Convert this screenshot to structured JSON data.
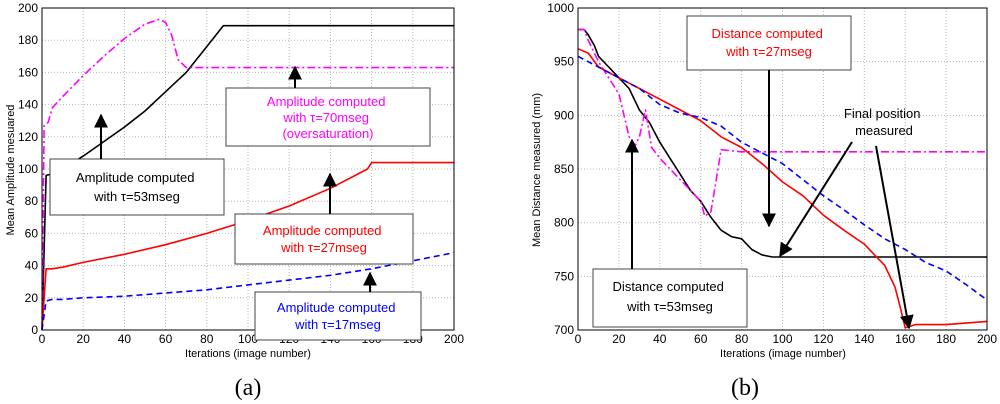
{
  "chart_data": [
    {
      "type": "line",
      "panel_caption": "(a)",
      "xlabel": "Iterations (image number)",
      "ylabel": "Mean Amplitude mesuared",
      "xlim": [
        0,
        200
      ],
      "ylim": [
        0,
        200
      ],
      "xticks": [
        0,
        20,
        40,
        60,
        80,
        100,
        120,
        140,
        160,
        180,
        200
      ],
      "yticks": [
        0,
        20,
        40,
        60,
        80,
        100,
        120,
        140,
        160,
        180,
        200
      ],
      "grid": true,
      "series": [
        {
          "name": "τ=53mseg",
          "color": "#000000",
          "style": "solid",
          "x": [
            0,
            2,
            5,
            10,
            20,
            30,
            40,
            50,
            60,
            70,
            80,
            88,
            100,
            120,
            140,
            160,
            180,
            200
          ],
          "y": [
            0,
            96,
            97,
            100,
            108,
            117,
            126,
            136,
            148,
            160,
            176,
            189,
            189,
            189,
            189,
            189,
            189,
            189
          ]
        },
        {
          "name": "τ=70mseg",
          "color": "#ff00ff",
          "style": "dashdot",
          "x": [
            0,
            1,
            3,
            5,
            10,
            20,
            30,
            40,
            50,
            57,
            60,
            63,
            66,
            70,
            80,
            100,
            120,
            140,
            160,
            180,
            200
          ],
          "y": [
            0,
            127,
            129,
            138,
            145,
            158,
            170,
            181,
            190,
            193,
            191,
            183,
            168,
            163,
            163,
            163,
            163,
            163,
            163,
            163,
            163
          ]
        },
        {
          "name": "τ=27mseg",
          "color": "#ff0000",
          "style": "solid",
          "x": [
            0,
            2,
            5,
            10,
            20,
            40,
            60,
            80,
            100,
            120,
            140,
            158,
            160,
            180,
            200
          ],
          "y": [
            0,
            38,
            38,
            39,
            42,
            47,
            53,
            60,
            68,
            77,
            88,
            100,
            104,
            104,
            104
          ]
        },
        {
          "name": "τ=17mseg",
          "color": "#0000ff",
          "style": "dashed",
          "x": [
            0,
            2,
            5,
            10,
            20,
            40,
            60,
            80,
            100,
            120,
            140,
            160,
            180,
            200
          ],
          "y": [
            0,
            18,
            19,
            19,
            20,
            21,
            23,
            25,
            28,
            31,
            34,
            38,
            43,
            48
          ]
        }
      ],
      "annotations": [
        {
          "lines": [
            "Amplitude computed",
            "with τ=53mseg"
          ],
          "color": "#000000"
        },
        {
          "lines": [
            "Amplitude computed",
            "with τ=70mseg",
            "(oversaturation)"
          ],
          "color": "#ff00ff"
        },
        {
          "lines": [
            "Amplitude computed",
            "with τ=27mseg"
          ],
          "color": "#ff0000"
        },
        {
          "lines": [
            "Amplitude computed",
            "with τ=17mseg"
          ],
          "color": "#0000ff"
        }
      ]
    },
    {
      "type": "line",
      "panel_caption": "(b)",
      "xlabel": "Iterations (image number)",
      "ylabel": "Mean Distance measured (mm)",
      "xlim": [
        0,
        200
      ],
      "ylim": [
        700,
        1000
      ],
      "xticks": [
        0,
        20,
        40,
        60,
        80,
        100,
        120,
        140,
        160,
        180,
        200
      ],
      "yticks": [
        700,
        750,
        800,
        850,
        900,
        950,
        1000
      ],
      "grid": true,
      "series": [
        {
          "name": "τ=53mseg",
          "color": "#000000",
          "style": "solid",
          "x": [
            0,
            3,
            5,
            8,
            10,
            15,
            20,
            25,
            30,
            35,
            40,
            45,
            50,
            55,
            60,
            65,
            70,
            75,
            80,
            85,
            90,
            95,
            100,
            120,
            140,
            160,
            180,
            200
          ],
          "y": [
            980,
            980,
            975,
            965,
            955,
            945,
            935,
            925,
            905,
            893,
            875,
            860,
            845,
            830,
            820,
            805,
            793,
            787,
            785,
            775,
            770,
            768,
            768,
            768,
            768,
            768,
            768,
            768
          ]
        },
        {
          "name": "τ=70mseg",
          "color": "#ff00ff",
          "style": "dashdot",
          "x": [
            0,
            3,
            5,
            10,
            15,
            20,
            25,
            28,
            30,
            33,
            36,
            40,
            50,
            60,
            62,
            65,
            68,
            70,
            80,
            100,
            120,
            140,
            160,
            180,
            200
          ],
          "y": [
            980,
            980,
            970,
            950,
            935,
            920,
            880,
            872,
            880,
            905,
            870,
            860,
            840,
            820,
            806,
            810,
            845,
            868,
            866,
            866,
            866,
            866,
            866,
            866,
            866
          ]
        },
        {
          "name": "τ=27mseg",
          "color": "#ff0000",
          "style": "solid",
          "x": [
            0,
            5,
            10,
            20,
            30,
            40,
            50,
            60,
            70,
            80,
            90,
            100,
            110,
            120,
            130,
            140,
            150,
            155,
            158,
            160,
            165,
            180,
            200
          ],
          "y": [
            962,
            958,
            945,
            935,
            925,
            915,
            905,
            895,
            880,
            870,
            855,
            838,
            825,
            807,
            793,
            780,
            760,
            740,
            718,
            702,
            705,
            705,
            708
          ]
        },
        {
          "name": "τ=17mseg",
          "color": "#0000ff",
          "style": "dashed",
          "x": [
            0,
            5,
            10,
            20,
            30,
            40,
            50,
            60,
            70,
            80,
            90,
            100,
            110,
            120,
            130,
            140,
            150,
            160,
            170,
            180,
            190,
            200
          ],
          "y": [
            955,
            950,
            945,
            935,
            925,
            910,
            902,
            898,
            890,
            875,
            865,
            855,
            840,
            825,
            812,
            798,
            785,
            775,
            763,
            755,
            742,
            728
          ]
        }
      ],
      "annotations": [
        {
          "lines": [
            "Distance computed",
            "with τ=27mseg"
          ],
          "color": "#ff0000"
        },
        {
          "lines": [
            "Final position",
            "measured"
          ],
          "color": "#000000"
        },
        {
          "lines": [
            "Distance computed",
            "with τ=53mseg"
          ],
          "color": "#000000"
        }
      ]
    }
  ]
}
